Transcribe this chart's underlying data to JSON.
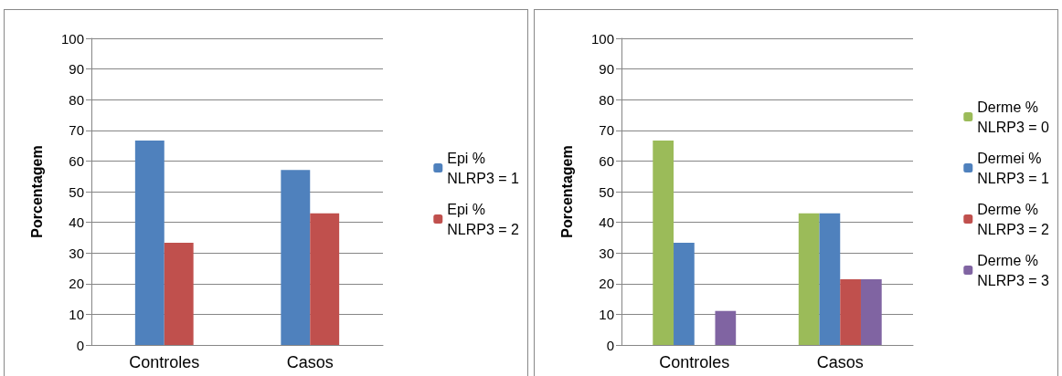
{
  "chart_data": [
    {
      "type": "bar",
      "ylabel": "Porcentagem",
      "categories": [
        "Controles",
        "Casos"
      ],
      "ylim": [
        0,
        100
      ],
      "yticks": [
        0,
        10,
        20,
        30,
        40,
        50,
        60,
        70,
        80,
        90,
        100
      ],
      "grid": "y",
      "legend": "right",
      "series": [
        {
          "name": "Epi %\nNLRP3 = 1",
          "color": "#4f81bd",
          "values": [
            66.7,
            57.1
          ]
        },
        {
          "name": "Epi %\nNLRP3 = 2",
          "color": "#c0504d",
          "values": [
            33.3,
            42.9
          ]
        }
      ]
    },
    {
      "type": "bar",
      "ylabel": "Porcentagem",
      "categories": [
        "Controles",
        "Casos"
      ],
      "ylim": [
        0,
        100
      ],
      "yticks": [
        0,
        10,
        20,
        30,
        40,
        50,
        60,
        70,
        80,
        90,
        100
      ],
      "grid": "y",
      "legend": "right",
      "series": [
        {
          "name": "Derme %\nNLRP3 = 0",
          "color": "#9bbb59",
          "values": [
            66.7,
            42.9
          ]
        },
        {
          "name": "Dermei %\nNLRP3 = 1",
          "color": "#4f81bd",
          "values": [
            33.3,
            42.9
          ]
        },
        {
          "name": "Derme %\nNLRP3 = 2",
          "color": "#c0504d",
          "values": [
            0,
            21.4
          ]
        },
        {
          "name": "Derme %\nNLRP3 = 3",
          "color": "#8064a2",
          "values": [
            11.1,
            21.4
          ]
        }
      ]
    }
  ]
}
